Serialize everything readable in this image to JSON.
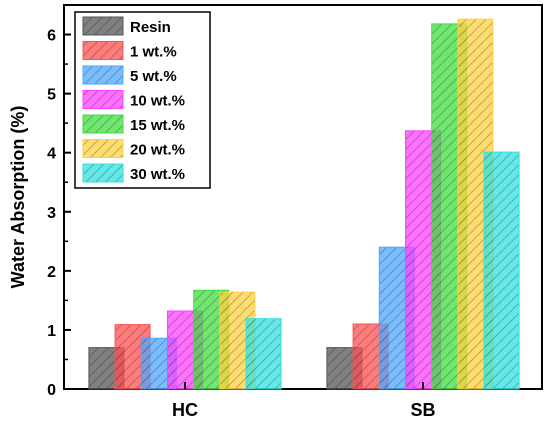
{
  "chart_data": {
    "type": "bar",
    "categories": [
      "HC",
      "SB"
    ],
    "series": [
      {
        "name": "Resin",
        "color": "#555555",
        "values": [
          0.7,
          0.7
        ]
      },
      {
        "name": "1 wt.%",
        "color": "#ff5050",
        "values": [
          1.09,
          1.1
        ]
      },
      {
        "name": "5 wt.%",
        "color": "#4da6ff",
        "values": [
          0.86,
          2.4
        ]
      },
      {
        "name": "10 wt.%",
        "color": "#ff40ff",
        "values": [
          1.32,
          4.37
        ]
      },
      {
        "name": "15 wt.%",
        "color": "#40dd40",
        "values": [
          1.67,
          6.18
        ]
      },
      {
        "name": "20 wt.%",
        "color": "#ffd040",
        "values": [
          1.64,
          6.26
        ]
      },
      {
        "name": "30 wt.%",
        "color": "#33e0e0",
        "values": [
          1.19,
          4.01
        ]
      }
    ],
    "xlabel": "",
    "ylabel": "Water Absorption (%)",
    "ylim": [
      0,
      6.5
    ],
    "yticks": [
      0,
      1,
      2,
      3,
      4,
      5,
      6
    ],
    "legend_position": "top-left",
    "grid": false
  }
}
